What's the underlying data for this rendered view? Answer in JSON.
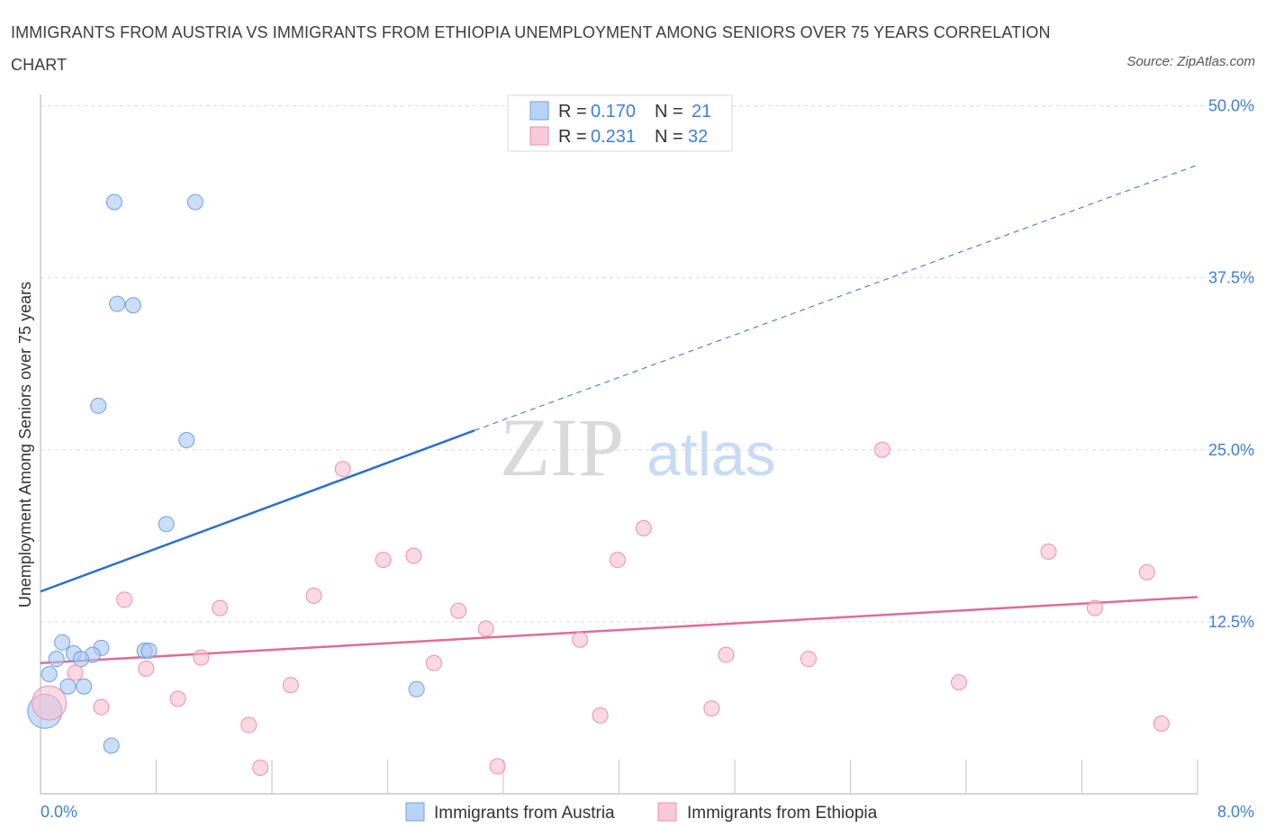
{
  "title": "IMMIGRANTS FROM AUSTRIA VS IMMIGRANTS FROM ETHIOPIA UNEMPLOYMENT AMONG SENIORS OVER 75 YEARS CORRELATION CHART",
  "source": "Source: ZipAtlas.com",
  "watermark": {
    "zip": "ZIP",
    "atlas": "atlas"
  },
  "legend": {
    "r_label": "R =",
    "n_label": "N =",
    "rows": [
      {
        "r": "0.170",
        "n": "21"
      },
      {
        "r": "0.231",
        "n": "32"
      }
    ]
  },
  "chart_data": {
    "type": "scatter",
    "xlabel": "",
    "ylabel": "Unemployment Among Seniors over 75 years",
    "xlim": [
      0,
      8
    ],
    "ylim": [
      0,
      50
    ],
    "x_tick_labels": [
      "0.0%",
      "8.0%"
    ],
    "y_ticks": [
      12.5,
      25.0,
      37.5,
      50.0
    ],
    "y_tick_labels": [
      "12.5%",
      "25.0%",
      "37.5%",
      "50.0%"
    ],
    "grid": true,
    "series": [
      {
        "name": "Immigrants from Austria",
        "color": "#a9c8f2",
        "stroke": "#6f9fe0",
        "line_color": "#2a6fd1",
        "trend": {
          "x": [
            0,
            3.0
          ],
          "y": [
            14.7,
            26.4
          ],
          "dashed_to": [
            8,
            45.7
          ]
        },
        "points": [
          {
            "x": 0.51,
            "y": 43.0
          },
          {
            "x": 1.07,
            "y": 43.0
          },
          {
            "x": 0.53,
            "y": 35.6
          },
          {
            "x": 0.64,
            "y": 35.5
          },
          {
            "x": 0.4,
            "y": 28.2
          },
          {
            "x": 1.01,
            "y": 25.7
          },
          {
            "x": 0.87,
            "y": 19.6
          },
          {
            "x": 0.15,
            "y": 11.0
          },
          {
            "x": 0.23,
            "y": 10.2
          },
          {
            "x": 0.42,
            "y": 10.6
          },
          {
            "x": 0.36,
            "y": 10.1
          },
          {
            "x": 0.72,
            "y": 10.4
          },
          {
            "x": 0.75,
            "y": 10.4
          },
          {
            "x": 0.28,
            "y": 9.8
          },
          {
            "x": 0.11,
            "y": 9.8
          },
          {
            "x": 0.06,
            "y": 8.7
          },
          {
            "x": 0.19,
            "y": 7.8
          },
          {
            "x": 0.3,
            "y": 7.8
          },
          {
            "x": 2.6,
            "y": 7.6
          },
          {
            "x": 0.49,
            "y": 3.5
          },
          {
            "x": 0.03,
            "y": 6.0,
            "big": true
          }
        ]
      },
      {
        "name": "Immigrants from Ethiopia",
        "color": "#f7bfd0",
        "stroke": "#ec90ac",
        "line_color": "#e06c97",
        "trend": {
          "x": [
            0,
            8
          ],
          "y": [
            9.5,
            14.3
          ]
        },
        "points": [
          {
            "x": 5.82,
            "y": 25.0
          },
          {
            "x": 2.09,
            "y": 23.6
          },
          {
            "x": 4.17,
            "y": 19.3
          },
          {
            "x": 6.97,
            "y": 17.6
          },
          {
            "x": 2.58,
            "y": 17.3
          },
          {
            "x": 2.37,
            "y": 17.0
          },
          {
            "x": 3.99,
            "y": 17.0
          },
          {
            "x": 7.65,
            "y": 16.1
          },
          {
            "x": 0.58,
            "y": 14.1
          },
          {
            "x": 1.89,
            "y": 14.4
          },
          {
            "x": 1.24,
            "y": 13.5
          },
          {
            "x": 2.89,
            "y": 13.3
          },
          {
            "x": 7.29,
            "y": 13.5
          },
          {
            "x": 3.08,
            "y": 12.0
          },
          {
            "x": 3.73,
            "y": 11.2
          },
          {
            "x": 1.11,
            "y": 9.9
          },
          {
            "x": 4.74,
            "y": 10.1
          },
          {
            "x": 5.31,
            "y": 9.8
          },
          {
            "x": 2.72,
            "y": 9.5
          },
          {
            "x": 0.73,
            "y": 9.1
          },
          {
            "x": 0.24,
            "y": 8.8
          },
          {
            "x": 1.73,
            "y": 7.9
          },
          {
            "x": 6.35,
            "y": 8.1
          },
          {
            "x": 0.95,
            "y": 6.9
          },
          {
            "x": 0.42,
            "y": 6.3
          },
          {
            "x": 4.64,
            "y": 6.2
          },
          {
            "x": 3.87,
            "y": 5.7
          },
          {
            "x": 1.44,
            "y": 5.0
          },
          {
            "x": 7.75,
            "y": 5.1
          },
          {
            "x": 1.52,
            "y": 1.9
          },
          {
            "x": 3.16,
            "y": 2.0
          },
          {
            "x": 0.06,
            "y": 6.6,
            "big": true
          }
        ]
      }
    ]
  }
}
